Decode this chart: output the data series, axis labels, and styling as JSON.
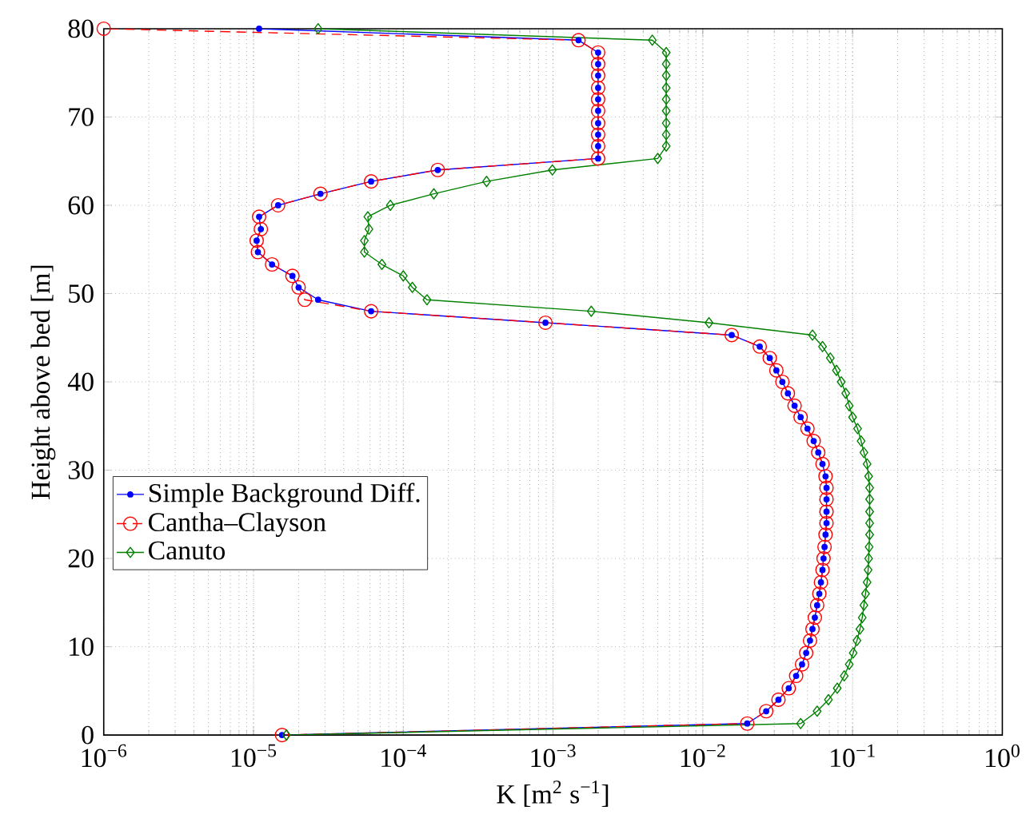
{
  "chart_data": {
    "type": "line",
    "xlabel": "K [m$^{2}$ s$^{−1}$]",
    "ylabel": "Height above bed [m]",
    "log": "x",
    "grid": true,
    "legend": "left",
    "xlim": [
      1e-06,
      1
    ],
    "ylim": [
      0,
      80
    ],
    "xticks": [
      {
        "value": 1e-06,
        "label": "10$^{−6}$"
      },
      {
        "value": 1e-05,
        "label": "10$^{−5}$"
      },
      {
        "value": 0.0001,
        "label": "10$^{−4}$"
      },
      {
        "value": 0.001,
        "label": "10$^{−3}$"
      },
      {
        "value": 0.01,
        "label": "10$^{−2}$"
      },
      {
        "value": 0.1,
        "label": "10$^{−1}$"
      },
      {
        "value": 1,
        "label": "10$^{0}$"
      }
    ],
    "yticks": [
      0,
      10,
      20,
      30,
      40,
      50,
      60,
      70,
      80
    ],
    "series": [
      {
        "name": "Simple Background Diff.",
        "color": "#0000ff",
        "marker": "circle",
        "line_style": "solid",
        "x": [
          1.55e-05,
          0.0198,
          0.0265,
          0.032,
          0.0375,
          0.042,
          0.046,
          0.049,
          0.052,
          0.054,
          0.056,
          0.058,
          0.06,
          0.0615,
          0.063,
          0.064,
          0.065,
          0.066,
          0.067,
          0.067,
          0.067,
          0.067,
          0.066,
          0.063,
          0.059,
          0.055,
          0.05,
          0.045,
          0.041,
          0.037,
          0.034,
          0.031,
          0.028,
          0.024,
          0.0156,
          0.00089,
          6.1e-05,
          2.7e-05,
          2e-05,
          1.82e-05,
          1.33e-05,
          1.07e-05,
          1.05e-05,
          1.12e-05,
          1.09e-05,
          1.46e-05,
          2.8e-05,
          6.1e-05,
          0.00017,
          0.002,
          0.002,
          0.002,
          0.002,
          0.002,
          0.002,
          0.002,
          0.002,
          0.002,
          0.002,
          0.00148,
          1.09e-05
        ],
        "values": [
          0,
          1.3,
          2.7,
          4,
          5.3,
          6.7,
          8,
          9.3,
          10.7,
          12,
          13.3,
          14.7,
          16,
          17.3,
          18.7,
          20,
          21.3,
          22.7,
          24,
          25.3,
          26.7,
          28,
          29.3,
          30.7,
          32,
          33.3,
          34.7,
          36,
          37.3,
          38.7,
          40,
          41.3,
          42.7,
          44,
          45.3,
          46.7,
          48,
          49.3,
          50.7,
          52,
          53.3,
          54.7,
          56,
          57.3,
          58.7,
          60,
          61.3,
          62.7,
          64,
          65.3,
          66.7,
          68,
          69.3,
          70.7,
          72,
          73.3,
          74.7,
          76,
          77.3,
          78.7,
          80
        ]
      },
      {
        "name": "Cantha–Clayson",
        "color": "#ff0000",
        "marker": "circle",
        "line_style": "dashed",
        "x": [
          1.55e-05,
          0.0198,
          0.0265,
          0.032,
          0.0375,
          0.042,
          0.046,
          0.049,
          0.052,
          0.054,
          0.056,
          0.058,
          0.06,
          0.0615,
          0.063,
          0.064,
          0.065,
          0.066,
          0.067,
          0.067,
          0.067,
          0.067,
          0.066,
          0.063,
          0.059,
          0.055,
          0.05,
          0.045,
          0.041,
          0.037,
          0.034,
          0.031,
          0.028,
          0.024,
          0.0156,
          0.00089,
          6.1e-05,
          2.2e-05,
          2e-05,
          1.82e-05,
          1.33e-05,
          1.07e-05,
          1.05e-05,
          1.12e-05,
          1.09e-05,
          1.46e-05,
          2.8e-05,
          6.1e-05,
          0.00017,
          0.002,
          0.002,
          0.002,
          0.002,
          0.002,
          0.002,
          0.002,
          0.002,
          0.002,
          0.002,
          0.00148,
          1e-06
        ],
        "values": [
          0,
          1.3,
          2.7,
          4,
          5.3,
          6.7,
          8,
          9.3,
          10.7,
          12,
          13.3,
          14.7,
          16,
          17.3,
          18.7,
          20,
          21.3,
          22.7,
          24,
          25.3,
          26.7,
          28,
          29.3,
          30.7,
          32,
          33.3,
          34.7,
          36,
          37.3,
          38.7,
          40,
          41.3,
          42.7,
          44,
          45.3,
          46.7,
          48,
          49.3,
          50.7,
          52,
          53.3,
          54.7,
          56,
          57.3,
          58.7,
          60,
          61.3,
          62.7,
          64,
          65.3,
          66.7,
          68,
          69.3,
          70.7,
          72,
          73.3,
          74.7,
          76,
          77.3,
          78.7,
          80
        ]
      },
      {
        "name": "Canuto",
        "color": "#008000",
        "marker": "diamond",
        "line_style": "solid",
        "x": [
          1.66e-05,
          0.045,
          0.058,
          0.069,
          0.079,
          0.088,
          0.095,
          0.101,
          0.107,
          0.112,
          0.116,
          0.119,
          0.122,
          0.125,
          0.127,
          0.128,
          0.129,
          0.13,
          0.13,
          0.13,
          0.13,
          0.13,
          0.128,
          0.125,
          0.119,
          0.114,
          0.108,
          0.1,
          0.095,
          0.09,
          0.084,
          0.078,
          0.071,
          0.063,
          0.054,
          0.011,
          0.0018,
          0.000144,
          0.000115,
          0.0001,
          7.2e-05,
          5.5e-05,
          5.5e-05,
          5.9e-05,
          5.8e-05,
          8.2e-05,
          0.00016,
          0.00036,
          0.00099,
          0.005,
          0.0057,
          0.0057,
          0.0057,
          0.0057,
          0.0057,
          0.0057,
          0.0057,
          0.0057,
          0.0057,
          0.0046,
          2.7e-05
        ],
        "values": [
          0,
          1.3,
          2.7,
          4,
          5.3,
          6.7,
          8,
          9.3,
          10.7,
          12,
          13.3,
          14.7,
          16,
          17.3,
          18.7,
          20,
          21.3,
          22.7,
          24,
          25.3,
          26.7,
          28,
          29.3,
          30.7,
          32,
          33.3,
          34.7,
          36,
          37.3,
          38.7,
          40,
          41.3,
          42.7,
          44,
          45.3,
          46.7,
          48,
          49.3,
          50.7,
          52,
          53.3,
          54.7,
          56,
          57.3,
          58.7,
          60,
          61.3,
          62.7,
          64,
          65.3,
          66.7,
          68,
          69.3,
          70.7,
          72,
          73.3,
          74.7,
          76,
          77.3,
          78.7,
          80
        ]
      }
    ]
  }
}
